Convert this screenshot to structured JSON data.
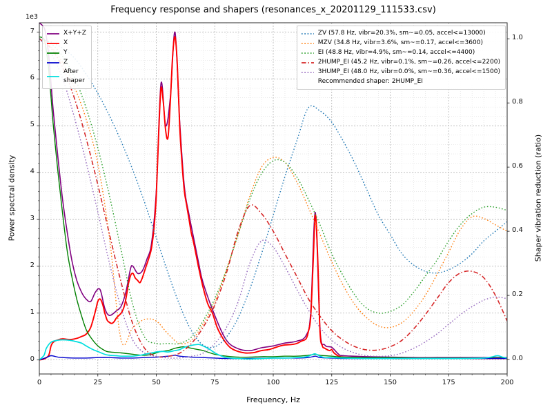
{
  "chart_data": {
    "type": "line",
    "title": "Frequency response and shapers (resonances_x_20201129_111533.csv)",
    "xlabel": "Frequency, Hz",
    "ylabel_left": "Power spectral density",
    "ylabel_right": "Shaper vibration reduction (ratio)",
    "y_left_multiplier": "1e3",
    "xlim": [
      0,
      200
    ],
    "ylim_left": [
      -0.3,
      7.2
    ],
    "ylim_right": [
      -0.045,
      1.05
    ],
    "xticks": [
      0,
      25,
      50,
      75,
      100,
      125,
      150,
      175,
      200
    ],
    "xtick_labels": [
      "0",
      "25",
      "50",
      "75",
      "100",
      "125",
      "150",
      "175",
      "200"
    ],
    "yticks_left": [
      0,
      1,
      2,
      3,
      4,
      5,
      6,
      7
    ],
    "ytick_labels_left": [
      "0",
      "1",
      "2",
      "3",
      "4",
      "5",
      "6",
      "7"
    ],
    "yticks_right": [
      0,
      0.2,
      0.4,
      0.6,
      0.8,
      1.0
    ],
    "ytick_labels_right": [
      "0.0",
      "0.2",
      "0.4",
      "0.6",
      "0.8",
      "1.0"
    ],
    "grid": "both",
    "recommended_shaper": "2HUMP_EI",
    "recommended_note": "Recommended shaper: 2HUMP_EI",
    "psd_series": [
      {
        "id": "xyz-sum",
        "label": "X+Y+Z",
        "color": "#800080",
        "style": "solid",
        "width": 1.6,
        "axis": "left",
        "x": [
          0,
          2,
          3,
          4,
          5,
          6,
          8,
          10,
          12,
          14,
          16,
          18,
          20,
          22,
          24,
          26,
          28,
          30,
          33,
          35,
          37,
          39,
          40,
          42,
          44,
          46,
          48,
          50,
          52,
          54,
          56,
          58,
          60,
          62,
          64,
          66,
          68,
          70,
          75,
          80,
          85,
          90,
          95,
          100,
          105,
          110,
          114,
          116,
          118,
          120,
          122,
          125,
          128,
          130,
          140,
          150,
          160,
          170,
          180,
          190,
          200
        ],
        "y": [
          7.2,
          7.1,
          6.9,
          6.5,
          5.9,
          5.3,
          4.3,
          3.4,
          2.7,
          2.1,
          1.7,
          1.45,
          1.3,
          1.25,
          1.45,
          1.5,
          1.1,
          0.95,
          1.05,
          1.15,
          1.45,
          1.95,
          2.0,
          1.85,
          1.9,
          2.15,
          2.5,
          3.6,
          5.9,
          5.0,
          5.6,
          7.0,
          5.1,
          3.7,
          3.1,
          2.6,
          2.1,
          1.65,
          0.95,
          0.42,
          0.24,
          0.2,
          0.26,
          0.3,
          0.36,
          0.4,
          0.52,
          1.0,
          3.15,
          0.65,
          0.32,
          0.27,
          0.12,
          0.09,
          0.07,
          0.06,
          0.05,
          0.05,
          0.05,
          0.05,
          0.05
        ]
      },
      {
        "id": "x",
        "label": "X",
        "color": "#ff0000",
        "style": "solid",
        "width": 1.9,
        "axis": "left",
        "x": [
          0,
          2,
          4,
          5,
          6,
          8,
          10,
          12,
          14,
          16,
          18,
          20,
          22,
          24,
          25,
          26,
          27,
          28,
          29,
          30,
          31,
          32,
          33,
          34,
          35,
          36,
          37,
          38,
          39,
          40,
          41,
          42,
          43,
          44,
          45,
          46,
          47,
          48,
          49,
          50,
          51,
          52,
          53,
          54,
          55,
          56,
          57,
          58,
          59,
          60,
          61,
          62,
          63,
          64,
          65,
          66,
          68,
          70,
          72,
          74,
          76,
          78,
          80,
          82,
          85,
          88,
          90,
          92,
          95,
          98,
          100,
          103,
          105,
          108,
          110,
          112,
          114,
          115,
          116,
          117,
          118,
          119,
          120,
          121,
          122,
          124,
          125,
          126,
          128,
          130,
          135,
          140,
          150,
          160,
          170,
          180,
          190,
          200
        ],
        "y": [
          0,
          0.02,
          0.1,
          0.3,
          0.38,
          0.43,
          0.45,
          0.44,
          0.44,
          0.46,
          0.5,
          0.55,
          0.7,
          1.05,
          1.25,
          1.3,
          1.2,
          1.0,
          0.85,
          0.8,
          0.78,
          0.82,
          0.9,
          0.95,
          1.0,
          1.1,
          1.3,
          1.6,
          1.8,
          1.85,
          1.75,
          1.7,
          1.65,
          1.75,
          1.9,
          2.05,
          2.2,
          2.4,
          2.8,
          3.5,
          4.8,
          5.8,
          5.5,
          4.9,
          4.75,
          5.5,
          6.5,
          6.9,
          6.3,
          5.0,
          4.2,
          3.6,
          3.3,
          3.0,
          2.7,
          2.5,
          2.0,
          1.55,
          1.2,
          1.0,
          0.7,
          0.5,
          0.35,
          0.25,
          0.18,
          0.15,
          0.15,
          0.16,
          0.2,
          0.22,
          0.25,
          0.3,
          0.32,
          0.33,
          0.35,
          0.4,
          0.45,
          0.6,
          0.9,
          2.0,
          3.1,
          2.2,
          0.6,
          0.3,
          0.25,
          0.2,
          0.22,
          0.15,
          0.08,
          0.06,
          0.05,
          0.04,
          0.03,
          0.03,
          0.03,
          0.03,
          0.03,
          0.03
        ]
      },
      {
        "id": "y",
        "label": "Y",
        "color": "#008000",
        "style": "solid",
        "width": 1.4,
        "axis": "left",
        "x": [
          0,
          2,
          3,
          4,
          5,
          6,
          8,
          10,
          12,
          14,
          16,
          18,
          20,
          22,
          25,
          28,
          30,
          35,
          40,
          45,
          48,
          50,
          52,
          55,
          58,
          60,
          62,
          65,
          68,
          70,
          75,
          80,
          85,
          90,
          95,
          100,
          105,
          110,
          115,
          118,
          120,
          125,
          130,
          140,
          150,
          160,
          170,
          180,
          190,
          200
        ],
        "y": [
          6.9,
          6.85,
          6.6,
          6.2,
          5.6,
          5.0,
          4.0,
          3.1,
          2.3,
          1.75,
          1.3,
          0.95,
          0.65,
          0.48,
          0.3,
          0.2,
          0.17,
          0.15,
          0.12,
          0.1,
          0.12,
          0.15,
          0.18,
          0.2,
          0.25,
          0.27,
          0.28,
          0.25,
          0.22,
          0.2,
          0.12,
          0.08,
          0.06,
          0.06,
          0.07,
          0.07,
          0.08,
          0.08,
          0.1,
          0.12,
          0.1,
          0.08,
          0.06,
          0.05,
          0.05,
          0.04,
          0.04,
          0.04,
          0.04,
          0.04
        ]
      },
      {
        "id": "z",
        "label": "Z",
        "color": "#0000cd",
        "style": "solid",
        "width": 1.4,
        "axis": "left",
        "x": [
          0,
          3,
          5,
          8,
          10,
          15,
          20,
          25,
          30,
          35,
          40,
          45,
          50,
          55,
          58,
          60,
          65,
          70,
          75,
          80,
          90,
          100,
          110,
          115,
          118,
          120,
          125,
          130,
          140,
          150,
          160,
          170,
          180,
          190,
          200
        ],
        "y": [
          0,
          0.05,
          0.09,
          0.06,
          0.05,
          0.04,
          0.04,
          0.05,
          0.05,
          0.04,
          0.04,
          0.05,
          0.06,
          0.08,
          0.1,
          0.08,
          0.06,
          0.05,
          0.04,
          0.03,
          0.03,
          0.04,
          0.04,
          0.05,
          0.08,
          0.05,
          0.04,
          0.03,
          0.03,
          0.03,
          0.03,
          0.03,
          0.03,
          0.03,
          0.03
        ]
      },
      {
        "id": "after-shaper",
        "label": "After\nshaper",
        "color": "#00dede",
        "style": "solid",
        "width": 1.7,
        "axis": "left",
        "x": [
          0,
          2,
          3,
          5,
          8,
          10,
          13,
          15,
          18,
          20,
          23,
          25,
          28,
          30,
          33,
          35,
          38,
          40,
          43,
          45,
          48,
          50,
          53,
          55,
          58,
          60,
          62,
          65,
          68,
          70,
          73,
          75,
          78,
          80,
          85,
          90,
          95,
          100,
          105,
          110,
          113,
          115,
          117,
          118,
          120,
          122,
          125,
          130,
          140,
          150,
          160,
          170,
          180,
          190,
          193,
          196,
          198,
          200
        ],
        "y": [
          0,
          0.1,
          0.25,
          0.38,
          0.42,
          0.43,
          0.42,
          0.4,
          0.36,
          0.3,
          0.22,
          0.18,
          0.12,
          0.1,
          0.09,
          0.08,
          0.08,
          0.08,
          0.1,
          0.12,
          0.15,
          0.17,
          0.18,
          0.17,
          0.2,
          0.22,
          0.27,
          0.31,
          0.33,
          0.3,
          0.22,
          0.15,
          0.08,
          0.05,
          0.03,
          0.02,
          0.03,
          0.04,
          0.04,
          0.05,
          0.06,
          0.08,
          0.12,
          0.13,
          0.08,
          0.05,
          0.05,
          0.04,
          0.03,
          0.03,
          0.03,
          0.03,
          0.03,
          0.04,
          0.06,
          0.09,
          0.06,
          0.04
        ]
      }
    ],
    "shaper_x": [
      0,
      5,
      10,
      15,
      20,
      25,
      30,
      35,
      40,
      45,
      50,
      55,
      60,
      65,
      70,
      75,
      80,
      85,
      90,
      95,
      100,
      105,
      110,
      115,
      120,
      125,
      130,
      135,
      140,
      145,
      150,
      155,
      160,
      165,
      170,
      175,
      180,
      185,
      190,
      195,
      200
    ],
    "shaper_series": [
      {
        "id": "zv",
        "name": "ZV",
        "freq_hz": 57.8,
        "vibr_pct": 20.3,
        "smoothing": 0.05,
        "max_accel": 13000,
        "label": "ZV (57.8 Hz, vibr=20.3%, sm~=0.05, accel<=13000)",
        "color": "#1f77b4",
        "style": "dotted",
        "width": 1.4,
        "axis": "right",
        "y": [
          1.0,
          0.99,
          0.97,
          0.94,
          0.89,
          0.83,
          0.76,
          0.68,
          0.59,
          0.49,
          0.38,
          0.27,
          0.17,
          0.09,
          0.045,
          0.04,
          0.07,
          0.13,
          0.22,
          0.33,
          0.45,
          0.57,
          0.68,
          0.785,
          0.775,
          0.74,
          0.68,
          0.61,
          0.53,
          0.45,
          0.39,
          0.33,
          0.295,
          0.275,
          0.27,
          0.28,
          0.3,
          0.33,
          0.37,
          0.4,
          0.43
        ]
      },
      {
        "id": "mzv",
        "name": "MZV",
        "freq_hz": 34.8,
        "vibr_pct": 3.6,
        "smoothing": 0.17,
        "max_accel": 3600,
        "label": "MZV (34.8 Hz, vibr=3.6%, sm~=0.17, accel<=3600)",
        "color": "#ff7f0e",
        "style": "dotted",
        "width": 1.4,
        "axis": "right",
        "y": [
          1.0,
          0.975,
          0.925,
          0.85,
          0.75,
          0.61,
          0.38,
          0.06,
          0.1,
          0.125,
          0.12,
          0.08,
          0.05,
          0.06,
          0.11,
          0.18,
          0.28,
          0.39,
          0.51,
          0.6,
          0.63,
          0.615,
          0.555,
          0.475,
          0.39,
          0.305,
          0.23,
          0.17,
          0.13,
          0.105,
          0.1,
          0.115,
          0.15,
          0.2,
          0.265,
          0.335,
          0.405,
          0.445,
          0.44,
          0.42,
          0.4
        ]
      },
      {
        "id": "ei",
        "name": "EI",
        "freq_hz": 48.8,
        "vibr_pct": 4.9,
        "smoothing": 0.14,
        "max_accel": 4400,
        "label": "EI (48.8 Hz, vibr=4.9%, sm~=0.14, accel<=4400)",
        "color": "#2ca02c",
        "style": "dotted",
        "width": 1.4,
        "axis": "right",
        "y": [
          1.0,
          0.985,
          0.945,
          0.88,
          0.785,
          0.66,
          0.51,
          0.34,
          0.17,
          0.07,
          0.05,
          0.05,
          0.05,
          0.07,
          0.12,
          0.19,
          0.28,
          0.39,
          0.5,
          0.58,
          0.62,
          0.615,
          0.57,
          0.5,
          0.42,
          0.33,
          0.26,
          0.2,
          0.16,
          0.145,
          0.15,
          0.17,
          0.21,
          0.26,
          0.31,
          0.37,
          0.42,
          0.455,
          0.475,
          0.475,
          0.465
        ]
      },
      {
        "id": "2hump-ei",
        "name": "2HUMP_EI",
        "freq_hz": 45.2,
        "vibr_pct": 0.1,
        "smoothing": 0.26,
        "max_accel": 2200,
        "label": "2HUMP_EI (45.2 Hz, vibr=0.1%, sm~=0.26, accel<=2200)",
        "color": "#d62728",
        "style": "dashdot",
        "width": 1.6,
        "axis": "right",
        "y": [
          1.0,
          0.97,
          0.91,
          0.815,
          0.69,
          0.545,
          0.39,
          0.24,
          0.11,
          0.035,
          0.01,
          0.01,
          0.02,
          0.05,
          0.1,
          0.17,
          0.27,
          0.4,
          0.48,
          0.455,
          0.4,
          0.33,
          0.26,
          0.19,
          0.135,
          0.09,
          0.06,
          0.04,
          0.03,
          0.03,
          0.04,
          0.06,
          0.095,
          0.14,
          0.19,
          0.24,
          0.27,
          0.275,
          0.255,
          0.2,
          0.12
        ]
      },
      {
        "id": "3hump-ei",
        "name": "3HUMP_EI",
        "freq_hz": 48.0,
        "vibr_pct": 0.0,
        "smoothing": 0.36,
        "max_accel": 1500,
        "label": "3HUMP_EI (48.0 Hz, vibr=0.0%, sm~=0.36, accel<=1500)",
        "color": "#9467bd",
        "style": "dotted",
        "width": 1.4,
        "axis": "right",
        "y": [
          1.0,
          0.955,
          0.875,
          0.755,
          0.615,
          0.46,
          0.3,
          0.16,
          0.06,
          0.02,
          0.01,
          0.005,
          0.005,
          0.01,
          0.02,
          0.05,
          0.1,
          0.18,
          0.3,
          0.37,
          0.35,
          0.29,
          0.22,
          0.155,
          0.1,
          0.06,
          0.035,
          0.02,
          0.012,
          0.01,
          0.012,
          0.02,
          0.035,
          0.055,
          0.08,
          0.11,
          0.14,
          0.165,
          0.185,
          0.195,
          0.19
        ]
      }
    ]
  }
}
